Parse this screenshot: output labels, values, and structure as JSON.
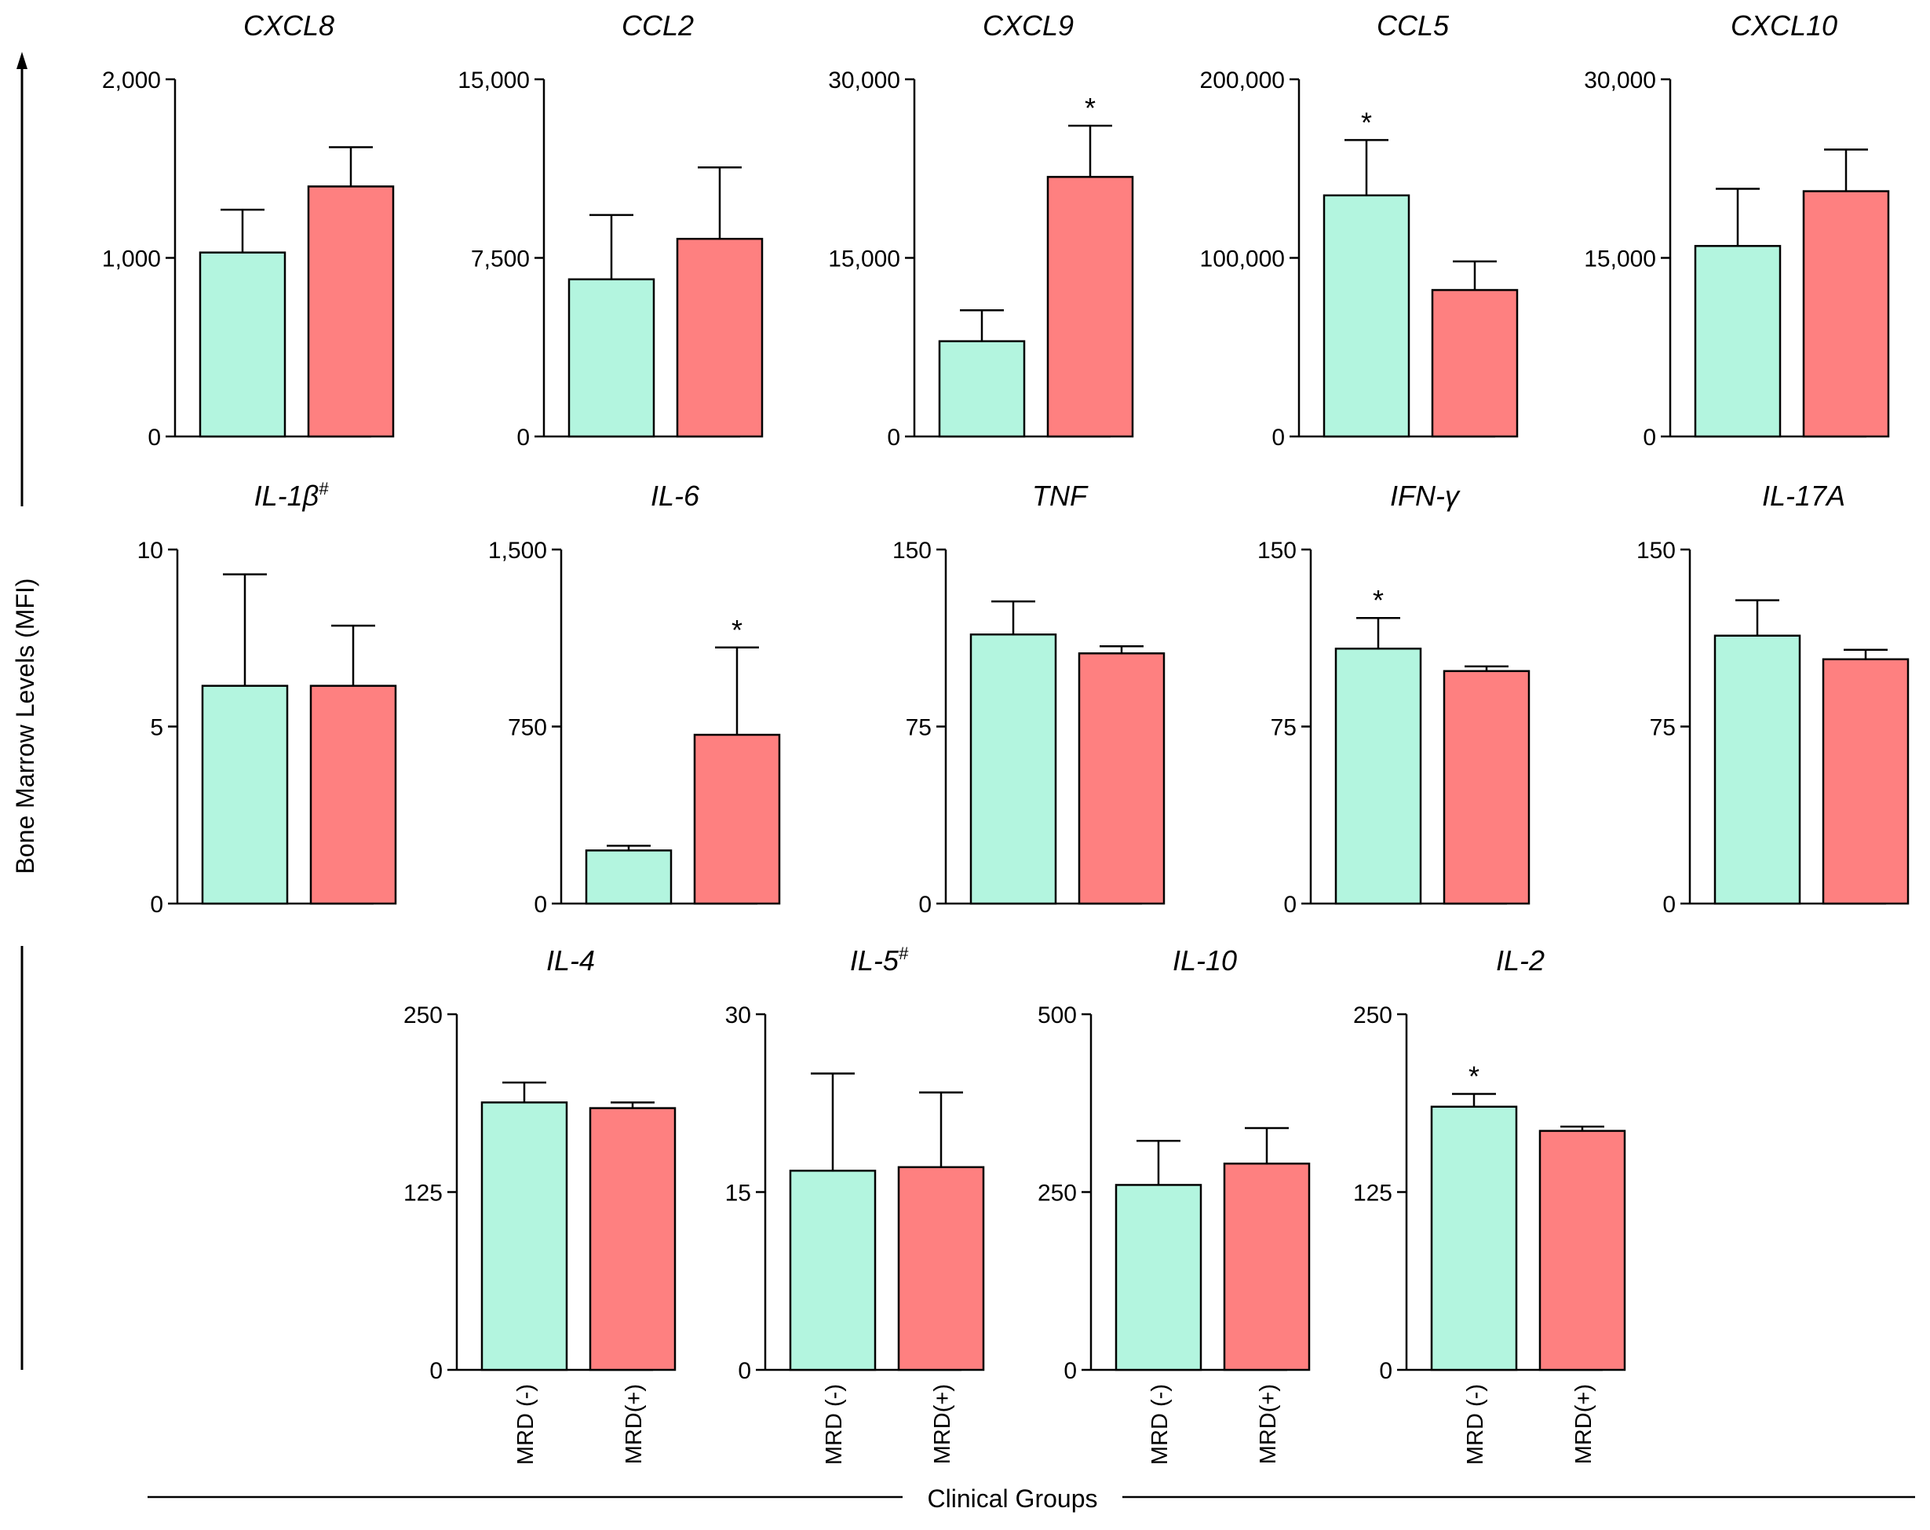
{
  "figure": {
    "y_axis_title": "Bone Marrow Levels (MFI)",
    "x_axis_title": "Clinical Groups"
  },
  "colors": {
    "mrd_neg": "#b3f5df",
    "mrd_pos": "#fe8080",
    "axis": "#000000"
  },
  "chart_data": [
    {
      "type": "bar",
      "title": "CXCL8",
      "sup": "",
      "categories": [
        "MRD (-)",
        "MRD(+)"
      ],
      "values": [
        1030,
        1400
      ],
      "errors": [
        240,
        220
      ],
      "ylim": [
        0,
        2000
      ],
      "yticks": [
        "0",
        "1,000",
        "2,000"
      ],
      "significant": [
        false,
        false
      ]
    },
    {
      "type": "bar",
      "title": "CCL2",
      "sup": "",
      "categories": [
        "MRD (-)",
        "MRD(+)"
      ],
      "values": [
        6600,
        8300
      ],
      "errors": [
        2700,
        3000
      ],
      "ylim": [
        0,
        15000
      ],
      "yticks": [
        "0",
        "7,500",
        "15,000"
      ],
      "significant": [
        false,
        false
      ]
    },
    {
      "type": "bar",
      "title": "CXCL9",
      "sup": "",
      "categories": [
        "MRD (-)",
        "MRD(+)"
      ],
      "values": [
        8000,
        21800
      ],
      "errors": [
        2600,
        4300
      ],
      "ylim": [
        0,
        30000
      ],
      "yticks": [
        "0",
        "15,000",
        "30,000"
      ],
      "significant": [
        false,
        true
      ]
    },
    {
      "type": "bar",
      "title": "CCL5",
      "sup": "",
      "categories": [
        "MRD (-)",
        "MRD(+)"
      ],
      "values": [
        135000,
        82000
      ],
      "errors": [
        31000,
        16000
      ],
      "ylim": [
        0,
        200000
      ],
      "yticks": [
        "0",
        "100,000",
        "200,000"
      ],
      "significant": [
        true,
        false
      ]
    },
    {
      "type": "bar",
      "title": "CXCL10",
      "sup": "",
      "categories": [
        "MRD (-)",
        "MRD(+)"
      ],
      "values": [
        16000,
        20600
      ],
      "errors": [
        4800,
        3500
      ],
      "ylim": [
        0,
        30000
      ],
      "yticks": [
        "0",
        "15,000",
        "30,000"
      ],
      "significant": [
        false,
        false
      ]
    },
    {
      "type": "bar",
      "title": "IL-1β",
      "sup": "#",
      "categories": [
        "MRD (-)",
        "MRD(+)"
      ],
      "values": [
        6.15,
        6.15
      ],
      "errors": [
        3.15,
        1.7
      ],
      "ylim": [
        0,
        10
      ],
      "yticks": [
        "0",
        "5",
        "10"
      ],
      "significant": [
        false,
        false
      ]
    },
    {
      "type": "bar",
      "title": "IL-6",
      "sup": "",
      "categories": [
        "MRD (-)",
        "MRD(+)"
      ],
      "values": [
        225,
        715
      ],
      "errors": [
        20,
        370
      ],
      "ylim": [
        0,
        1500
      ],
      "yticks": [
        "0",
        "750",
        "1,500"
      ],
      "significant": [
        false,
        true
      ]
    },
    {
      "type": "bar",
      "title": "TNF",
      "sup": "",
      "categories": [
        "MRD (-)",
        "MRD(+)"
      ],
      "values": [
        114,
        106
      ],
      "errors": [
        14,
        3
      ],
      "ylim": [
        0,
        150
      ],
      "yticks": [
        "0",
        "75",
        "150"
      ],
      "significant": [
        false,
        false
      ]
    },
    {
      "type": "bar",
      "title": "IFN-γ",
      "sup": "",
      "categories": [
        "MRD (-)",
        "MRD(+)"
      ],
      "values": [
        108,
        98.5
      ],
      "errors": [
        13,
        2
      ],
      "ylim": [
        0,
        150
      ],
      "yticks": [
        "0",
        "75",
        "150"
      ],
      "significant": [
        true,
        false
      ]
    },
    {
      "type": "bar",
      "title": "IL-17A",
      "sup": "",
      "categories": [
        "MRD (-)",
        "MRD(+)"
      ],
      "values": [
        113.5,
        103.5
      ],
      "errors": [
        15,
        4
      ],
      "ylim": [
        0,
        150
      ],
      "yticks": [
        "0",
        "75",
        "150"
      ],
      "significant": [
        false,
        false
      ]
    },
    {
      "type": "bar",
      "title": "IL-4",
      "sup": "",
      "categories": [
        "MRD (-)",
        "MRD(+)"
      ],
      "values": [
        188,
        184
      ],
      "errors": [
        14,
        4
      ],
      "ylim": [
        0,
        250
      ],
      "yticks": [
        "0",
        "125",
        "250"
      ],
      "significant": [
        false,
        false
      ]
    },
    {
      "type": "bar",
      "title": "IL-5",
      "sup": "#",
      "categories": [
        "MRD (-)",
        "MRD(+)"
      ],
      "values": [
        16.8,
        17.1
      ],
      "errors": [
        8.2,
        6.3
      ],
      "ylim": [
        0,
        30
      ],
      "yticks": [
        "0",
        "15",
        "30"
      ],
      "significant": [
        false,
        false
      ]
    },
    {
      "type": "bar",
      "title": "IL-10",
      "sup": "",
      "categories": [
        "MRD (-)",
        "MRD(+)"
      ],
      "values": [
        260,
        290
      ],
      "errors": [
        62,
        50
      ],
      "ylim": [
        0,
        500
      ],
      "yticks": [
        "0",
        "250",
        "500"
      ],
      "significant": [
        false,
        false
      ]
    },
    {
      "type": "bar",
      "title": "IL-2",
      "sup": "",
      "categories": [
        "MRD (-)",
        "MRD(+)"
      ],
      "values": [
        185,
        168
      ],
      "errors": [
        9,
        3
      ],
      "ylim": [
        0,
        250
      ],
      "yticks": [
        "0",
        "125",
        "250"
      ],
      "significant": [
        true,
        false
      ]
    }
  ]
}
